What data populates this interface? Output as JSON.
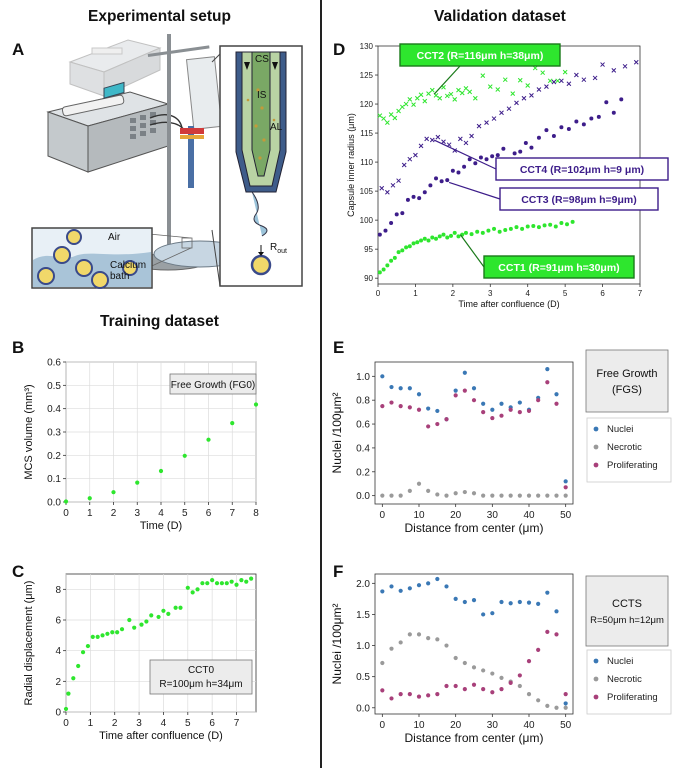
{
  "headings": {
    "left_top": "Experimental setup",
    "right_top": "Validation dataset",
    "left_mid": "Training dataset"
  },
  "panel_letters": [
    "A",
    "B",
    "C",
    "D",
    "E",
    "F"
  ],
  "setup_labels": {
    "cs": "CS",
    "is": "IS",
    "al": "AL",
    "air": "Air",
    "bath_line1": "Calcium",
    "bath_line2": "bath",
    "rout": "R",
    "rout_sub": "out"
  },
  "colors": {
    "green": "#2ee62e",
    "purple": "#3d1d8a",
    "blue": "#3a78b5",
    "gray": "#9a9a9a",
    "magenta": "#a8407a",
    "callout_bg": "#ececec"
  },
  "chart_data": [
    {
      "id": "B",
      "type": "scatter",
      "xlabel": "Time (D)",
      "ylabel": "MCS volume (mm³)",
      "xlim": [
        0,
        8
      ],
      "ylim": [
        0,
        0.6
      ],
      "xticks": [
        0,
        1,
        2,
        3,
        4,
        5,
        6,
        7,
        8
      ],
      "yticks": [
        0.0,
        0.1,
        0.2,
        0.3,
        0.4,
        0.5,
        0.6
      ],
      "grid": true,
      "annotation": {
        "line1": "Free Growth (FG0)"
      },
      "series": [
        {
          "color": "#2ee62e",
          "x": [
            0,
            1,
            2,
            3,
            4,
            5,
            6,
            7,
            8
          ],
          "y": [
            0.002,
            0.016,
            0.042,
            0.083,
            0.133,
            0.198,
            0.267,
            0.338,
            0.418
          ]
        }
      ]
    },
    {
      "id": "C",
      "type": "scatter",
      "xlabel": "Time after confluence (D)",
      "ylabel": "Radial displacement (μm)",
      "xlim": [
        0,
        7.8
      ],
      "ylim": [
        0,
        9
      ],
      "xticks": [
        0,
        1,
        2,
        3,
        4,
        5,
        6,
        7
      ],
      "yticks": [
        0,
        2,
        4,
        6,
        8
      ],
      "grid": true,
      "annotation": {
        "line1": "CCT0",
        "line2": "R=100μm h=34μm"
      },
      "series": [
        {
          "color": "#2ee62e",
          "x": [
            0,
            0.1,
            0.3,
            0.5,
            0.7,
            0.9,
            1.1,
            1.3,
            1.5,
            1.7,
            1.9,
            2.1,
            2.3,
            2.6,
            2.8,
            3.1,
            3.3,
            3.5,
            3.8,
            4,
            4.2,
            4.5,
            4.7,
            5,
            5.2,
            5.4,
            5.6,
            5.8,
            6,
            6.2,
            6.4,
            6.6,
            6.8,
            7,
            7.2,
            7.4,
            7.6
          ],
          "y": [
            0.2,
            1.2,
            2.2,
            3,
            3.9,
            4.3,
            4.9,
            4.9,
            5,
            5.1,
            5.2,
            5.2,
            5.4,
            6,
            5.5,
            5.7,
            5.9,
            6.3,
            6.2,
            6.6,
            6.4,
            6.8,
            6.8,
            8.1,
            7.8,
            8,
            8.4,
            8.4,
            8.6,
            8.4,
            8.4,
            8.4,
            8.5,
            8.3,
            8.6,
            8.5,
            8.7
          ]
        }
      ]
    },
    {
      "id": "D",
      "type": "scatter",
      "xlabel": "Time after confluence (D)",
      "ylabel": "Capsule inner radius (μm)",
      "xlim": [
        0,
        7
      ],
      "ylim": [
        89,
        130
      ],
      "xticks": [
        0,
        1,
        2,
        3,
        4,
        5,
        6,
        7
      ],
      "yticks": [
        90,
        95,
        100,
        105,
        110,
        115,
        120,
        125,
        130
      ],
      "grid": false,
      "series": [
        {
          "name": "CCT2 (R=116μm h=38μm)",
          "marker": "x",
          "color": "#2ee62e",
          "x": [
            0.05,
            0.15,
            0.25,
            0.35,
            0.45,
            0.55,
            0.65,
            0.75,
            0.85,
            0.95,
            1.05,
            1.15,
            1.25,
            1.35,
            1.45,
            1.55,
            1.65,
            1.75,
            1.85,
            1.95,
            2.05,
            2.15,
            2.25,
            2.35,
            2.45,
            2.6,
            2.8,
            3,
            3.2,
            3.4,
            3.6,
            3.8,
            4,
            4.2,
            4.4,
            4.6,
            4.8,
            5
          ],
          "y": [
            118,
            117.5,
            116.8,
            118.2,
            117.6,
            118.8,
            119.5,
            120,
            120.8,
            119.9,
            121,
            121.6,
            120.5,
            121.8,
            122.4,
            121.5,
            121,
            122.9,
            121.4,
            121.7,
            120.8,
            122.4,
            121.9,
            122.7,
            122.1,
            121,
            124.9,
            123,
            122.5,
            124.2,
            121.8,
            124.1,
            123.2,
            126.2,
            125.4,
            124,
            124,
            125.5
          ]
        },
        {
          "name": "CCT4 (R=102μm h=9 μm)",
          "marker": "x",
          "color": "#3d1d8a",
          "x": [
            0.1,
            0.25,
            0.4,
            0.55,
            0.7,
            0.85,
            1,
            1.15,
            1.3,
            1.45,
            1.6,
            1.75,
            1.9,
            2.05,
            2.2,
            2.35,
            2.5,
            2.7,
            2.9,
            3.1,
            3.3,
            3.5,
            3.7,
            3.9,
            4.1,
            4.3,
            4.5,
            4.7,
            4.9,
            5.1,
            5.3,
            5.5,
            5.8,
            6,
            6.3,
            6.6,
            6.9
          ],
          "y": [
            105.5,
            104.8,
            106,
            106.8,
            109.5,
            110.5,
            111.2,
            112.8,
            114,
            113.8,
            114.3,
            113.5,
            113,
            112,
            114,
            113.3,
            114.5,
            116.2,
            116.8,
            117.5,
            118.5,
            119.2,
            120.2,
            121,
            121.5,
            122.5,
            123,
            123.8,
            124,
            123.5,
            125,
            124.2,
            124.5,
            126.8,
            125.8,
            126.5,
            127.2
          ]
        },
        {
          "name": "CCT3 (R=98μm h=9μm)",
          "marker": "o",
          "color": "#3d1d8a",
          "x": [
            0.05,
            0.2,
            0.35,
            0.5,
            0.65,
            0.8,
            0.95,
            1.1,
            1.25,
            1.4,
            1.55,
            1.7,
            1.85,
            2,
            2.15,
            2.3,
            2.45,
            2.6,
            2.75,
            2.9,
            3.05,
            3.2,
            3.35,
            3.5,
            3.65,
            3.8,
            3.95,
            4.1,
            4.3,
            4.5,
            4.7,
            4.9,
            5.1,
            5.3,
            5.5,
            5.7,
            5.9,
            6.1,
            6.3,
            6.5
          ],
          "y": [
            97.5,
            98.2,
            99.5,
            101,
            101.2,
            103.5,
            104,
            103.8,
            104.8,
            106,
            107.2,
            106.7,
            106.9,
            108.5,
            108.2,
            109.2,
            110.5,
            109.8,
            110.8,
            110.5,
            111,
            111.2,
            112.3,
            110.2,
            111.5,
            111.8,
            113.3,
            112.5,
            114.2,
            115.5,
            114.5,
            116,
            115.7,
            117,
            116.5,
            117.5,
            117.8,
            120.3,
            118.5,
            120.8
          ]
        },
        {
          "name": "CCT1 (R=91μm h=30μm)",
          "marker": "o",
          "color": "#2ee62e",
          "x": [
            0.05,
            0.15,
            0.25,
            0.35,
            0.45,
            0.55,
            0.65,
            0.75,
            0.85,
            0.95,
            1.05,
            1.15,
            1.25,
            1.35,
            1.45,
            1.55,
            1.65,
            1.75,
            1.85,
            1.95,
            2.05,
            2.15,
            2.25,
            2.35,
            2.5,
            2.65,
            2.8,
            2.95,
            3.1,
            3.25,
            3.4,
            3.55,
            3.7,
            3.85,
            4,
            4.15,
            4.3,
            4.45,
            4.6,
            4.75,
            4.9,
            5.05,
            5.2
          ],
          "y": [
            91,
            91.5,
            92.2,
            93,
            93.5,
            94.5,
            94.8,
            95.3,
            95.5,
            96,
            96.2,
            96.5,
            96.8,
            96.5,
            97,
            96.8,
            97.2,
            97.5,
            97,
            97.3,
            97.8,
            97.2,
            97.5,
            97.8,
            97.6,
            98,
            97.8,
            98.2,
            98.5,
            98,
            98.3,
            98.5,
            98.8,
            98.5,
            98.9,
            99,
            98.8,
            99.1,
            99.2,
            98.9,
            99.5,
            99.3,
            99.7
          ]
        }
      ]
    },
    {
      "id": "E",
      "type": "scatter",
      "xlabel": "Distance from center (μm)",
      "ylabel": "Nuclei /100μm²",
      "xlim": [
        -2,
        52
      ],
      "ylim": [
        -0.07,
        1.12
      ],
      "xticks": [
        0,
        10,
        20,
        30,
        40,
        50
      ],
      "yticks": [
        0.0,
        0.2,
        0.4,
        0.6,
        0.8,
        1.0
      ],
      "grid": false,
      "annotation": {
        "line1": "Free Growth",
        "line2": "(FGS)"
      },
      "x": [
        0,
        2.5,
        5,
        7.5,
        10,
        12.5,
        15,
        17.5,
        20,
        22.5,
        25,
        27.5,
        30,
        32.5,
        35,
        37.5,
        40,
        42.5,
        45,
        47.5,
        50
      ],
      "series": [
        {
          "name": "Nuclei",
          "color": "#3a78b5",
          "y": [
            1.0,
            0.91,
            0.9,
            0.9,
            0.85,
            0.73,
            0.71,
            0.64,
            0.88,
            1.03,
            0.9,
            0.77,
            0.72,
            0.77,
            0.74,
            0.78,
            0.72,
            0.82,
            1.06,
            0.85,
            0.12
          ]
        },
        {
          "name": "Necrotic",
          "color": "#9a9a9a",
          "y": [
            0,
            0,
            0,
            0.04,
            0.1,
            0.04,
            0.01,
            0,
            0.02,
            0.03,
            0.02,
            0,
            0,
            0,
            0,
            0,
            0,
            0,
            0,
            0,
            0
          ]
        },
        {
          "name": "Proliferating",
          "color": "#a8407a",
          "y": [
            0.75,
            0.78,
            0.75,
            0.74,
            0.72,
            0.58,
            0.6,
            0.64,
            0.84,
            0.88,
            0.8,
            0.7,
            0.65,
            0.67,
            0.72,
            0.7,
            0.71,
            0.8,
            0.95,
            0.77,
            0.07
          ]
        }
      ]
    },
    {
      "id": "F",
      "type": "scatter",
      "xlabel": "Distance from center (μm)",
      "ylabel": "Nuclei /100μm²",
      "xlim": [
        -2,
        52
      ],
      "ylim": [
        -0.1,
        2.15
      ],
      "xticks": [
        0,
        10,
        20,
        30,
        40,
        50
      ],
      "yticks": [
        0.0,
        0.5,
        1.0,
        1.5,
        2.0
      ],
      "grid": false,
      "annotation": {
        "line1": "CCTS",
        "line2": "R=50μm  h=12μm"
      },
      "x": [
        0,
        2.5,
        5,
        7.5,
        10,
        12.5,
        15,
        17.5,
        20,
        22.5,
        25,
        27.5,
        30,
        32.5,
        35,
        37.5,
        40,
        42.5,
        45,
        47.5,
        50
      ],
      "series": [
        {
          "name": "Nuclei",
          "color": "#3a78b5",
          "y": [
            1.87,
            1.95,
            1.88,
            1.92,
            1.97,
            2.0,
            2.07,
            1.95,
            1.75,
            1.7,
            1.73,
            1.5,
            1.52,
            1.7,
            1.68,
            1.7,
            1.69,
            1.67,
            1.85,
            1.55,
            0.07
          ]
        },
        {
          "name": "Necrotic",
          "color": "#9a9a9a",
          "y": [
            0.72,
            0.95,
            1.05,
            1.18,
            1.18,
            1.12,
            1.1,
            1.0,
            0.8,
            0.72,
            0.65,
            0.6,
            0.55,
            0.48,
            0.42,
            0.35,
            0.22,
            0.12,
            0.03,
            0,
            0
          ]
        },
        {
          "name": "Proliferating",
          "color": "#a8407a",
          "y": [
            0.28,
            0.15,
            0.22,
            0.22,
            0.18,
            0.2,
            0.22,
            0.35,
            0.35,
            0.3,
            0.37,
            0.3,
            0.25,
            0.3,
            0.4,
            0.52,
            0.75,
            0.93,
            1.22,
            1.18,
            0.22
          ]
        }
      ]
    }
  ]
}
